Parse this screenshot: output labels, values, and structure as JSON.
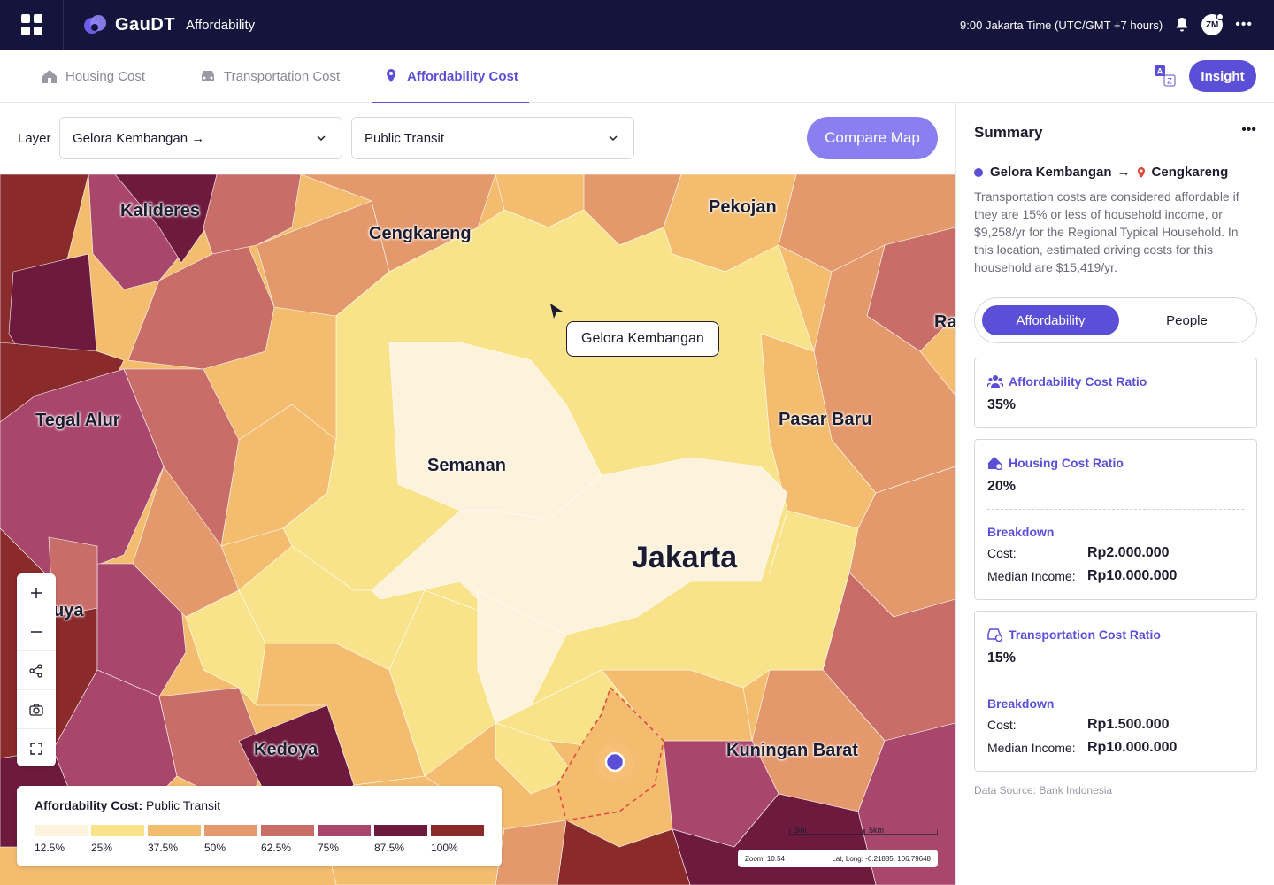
{
  "app": {
    "brand": "GauDT",
    "module": "Affordability"
  },
  "header": {
    "time_text": "9:00 Jakarta Time (UTC/GMT +7 hours)",
    "avatar_initials": "ZM"
  },
  "tabs": [
    {
      "label": "Housing Cost",
      "icon": "house-icon",
      "active": false
    },
    {
      "label": "Transportation Cost",
      "icon": "car-icon",
      "active": false
    },
    {
      "label": "Affordability Cost",
      "icon": "map-pin-icon",
      "active": true
    }
  ],
  "insight_label": "Insight",
  "layer": {
    "label": "Layer",
    "location_value": "Gelora Kembangan →",
    "mode_value": "Public Transit",
    "compare_label": "Compare Map"
  },
  "map": {
    "labels": [
      "Kalideres",
      "Cengkareng",
      "Pekojan",
      "Tegal Alur",
      "Semanan",
      "Pasar Baru",
      "Jakarta",
      "Kedoya",
      "Kuningan Barat",
      "Ra",
      "uya"
    ],
    "tooltip": "Gelora Kembangan",
    "legend": {
      "title": "Affordability Cost:",
      "mode": "Public Transit",
      "steps": [
        {
          "label": "12.5%",
          "color": "#fdf3dc"
        },
        {
          "label": "25%",
          "color": "#f8e38a"
        },
        {
          "label": "37.5%",
          "color": "#f3bc6e"
        },
        {
          "label": "50%",
          "color": "#e4996c"
        },
        {
          "label": "62.5%",
          "color": "#c96d68"
        },
        {
          "label": "75%",
          "color": "#a9466c"
        },
        {
          "label": "87.5%",
          "color": "#6e1a3e"
        },
        {
          "label": "100%",
          "color": "#8a2a2a"
        }
      ]
    },
    "scale": {
      "miles": "3mi",
      "km": "5km"
    },
    "zoom_text": "Zoom: 10.54",
    "latlong_text": "Lat, Long: -6.21885, 106.79648"
  },
  "summary": {
    "title": "Summary",
    "origin": "Gelora Kembangan",
    "destination": "Cengkareng",
    "description": "Transportation costs are considered affordable if they are 15% or less of household income, or $9,258/yr for the Regional Typical Household. In this location, estimated driving costs for this household are $15,419/yr.",
    "segments": [
      "Affordability",
      "People"
    ],
    "cards": [
      {
        "title": "Affordability Cost Ratio",
        "icon": "people-group-icon",
        "value": "35%"
      },
      {
        "title": "Housing Cost Ratio",
        "icon": "house-gear-icon",
        "value": "20%",
        "breakdown_title": "Breakdown",
        "cost_label": "Cost:",
        "cost_value": "Rp2.000.000",
        "income_label": "Median Income:",
        "income_value": "Rp10.000.000"
      },
      {
        "title": "Transportation Cost Ratio",
        "icon": "car-gear-icon",
        "value": "15%",
        "breakdown_title": "Breakdown",
        "cost_label": "Cost:",
        "cost_value": "Rp1.500.000",
        "income_label": "Median Income:",
        "income_value": "Rp10.000.000"
      }
    ],
    "source": "Data Source: Bank Indonesia"
  }
}
